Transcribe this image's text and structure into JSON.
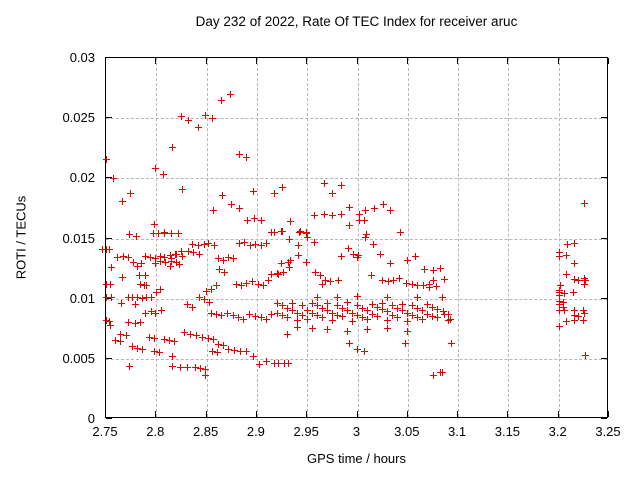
{
  "chart_data": {
    "type": "scatter",
    "title": "Day 232 of 2022, Rate Of TEC Index for receiver aruc",
    "xlabel": "GPS time / hours",
    "ylabel": "ROTI / TECUs",
    "xlim": [
      2.75,
      3.25
    ],
    "ylim": [
      0,
      0.03
    ],
    "x_ticks": [
      2.75,
      2.8,
      2.85,
      2.9,
      2.95,
      3.0,
      3.05,
      3.1,
      3.15,
      3.2,
      3.25
    ],
    "x_tick_labels": [
      "2.75",
      "2.8",
      "2.85",
      "2.9",
      "2.95",
      "3",
      "3.05",
      "3.1",
      "3.15",
      "3.2",
      "3.25"
    ],
    "y_ticks": [
      0,
      0.005,
      0.01,
      0.015,
      0.02,
      0.025,
      0.03
    ],
    "y_tick_labels": [
      "0",
      "0.005",
      "0.01",
      "0.015",
      "0.02",
      "0.025",
      "0.03"
    ],
    "grid": true,
    "legend": "none",
    "marker": "plus",
    "marker_color": "#e60000",
    "grid_color": "#b5b5b5",
    "points": [
      [
        2.874,
        0.027
      ],
      [
        2.865,
        0.0265
      ],
      [
        2.825,
        0.0251
      ],
      [
        2.832,
        0.0248
      ],
      [
        2.842,
        0.0242
      ],
      [
        2.849,
        0.0252
      ],
      [
        2.856,
        0.025
      ],
      [
        2.816,
        0.0226
      ],
      [
        2.883,
        0.022
      ],
      [
        2.89,
        0.0217
      ],
      [
        2.75,
        0.0216
      ],
      [
        2.757,
        0.02
      ],
      [
        2.799,
        0.0208
      ],
      [
        2.807,
        0.0203
      ],
      [
        2.774,
        0.0187
      ],
      [
        2.766,
        0.0181
      ],
      [
        2.826,
        0.0191
      ],
      [
        2.866,
        0.0186
      ],
      [
        2.875,
        0.0178
      ],
      [
        2.857,
        0.0173
      ],
      [
        2.883,
        0.0175
      ],
      [
        2.897,
        0.0189
      ],
      [
        2.898,
        0.0167
      ],
      [
        2.891,
        0.0165
      ],
      [
        2.905,
        0.0165
      ],
      [
        2.798,
        0.0162
      ],
      [
        2.808,
        0.0155
      ],
      [
        2.967,
        0.0196
      ],
      [
        2.925,
        0.0192
      ],
      [
        2.917,
        0.0187
      ],
      [
        2.984,
        0.0194
      ],
      [
        2.975,
        0.0187
      ],
      [
        2.992,
        0.0176
      ],
      [
        3.026,
        0.0178
      ],
      [
        3.017,
        0.0175
      ],
      [
        3.033,
        0.0173
      ],
      [
        3.008,
        0.0173
      ],
      [
        2.957,
        0.0169
      ],
      [
        2.967,
        0.017
      ],
      [
        2.975,
        0.0169
      ],
      [
        2.984,
        0.017
      ],
      [
        3.002,
        0.017
      ],
      [
        3.002,
        0.0165
      ],
      [
        3.007,
        0.0165
      ],
      [
        2.992,
        0.0161
      ],
      [
        2.933,
        0.0164
      ],
      [
        2.915,
        0.0155
      ],
      [
        2.924,
        0.0156
      ],
      [
        2.942,
        0.0155
      ],
      [
        2.949,
        0.0154
      ],
      [
        3.043,
        0.0155
      ],
      [
        3.008,
        0.0151
      ],
      [
        2.95,
        0.0151
      ],
      [
        2.917,
        0.0155
      ],
      [
        2.925,
        0.0156
      ],
      [
        2.943,
        0.0156
      ],
      [
        2.949,
        0.0155
      ],
      [
        2.932,
        0.0149
      ],
      [
        2.941,
        0.0144
      ],
      [
        2.941,
        0.0136
      ],
      [
        2.957,
        0.0147
      ],
      [
        2.949,
        0.013
      ],
      [
        2.924,
        0.0129
      ],
      [
        2.931,
        0.013
      ],
      [
        2.933,
        0.0132
      ],
      [
        2.932,
        0.0126
      ],
      [
        2.926,
        0.0122
      ],
      [
        2.92,
        0.0121
      ],
      [
        2.915,
        0.012
      ],
      [
        2.921,
        0.012
      ],
      [
        2.958,
        0.0122
      ],
      [
        2.963,
        0.0119
      ],
      [
        2.968,
        0.0115
      ],
      [
        2.965,
        0.0112
      ],
      [
        2.973,
        0.0114
      ],
      [
        2.981,
        0.0115
      ],
      [
        2.984,
        0.0135
      ],
      [
        2.991,
        0.0142
      ],
      [
        2.996,
        0.0137
      ],
      [
        3.001,
        0.0136
      ],
      [
        3.0,
        0.0134
      ],
      [
        3.009,
        0.0153
      ],
      [
        3.016,
        0.0145
      ],
      [
        3.023,
        0.0137
      ],
      [
        3.033,
        0.0129
      ],
      [
        3.05,
        0.0132
      ],
      [
        3.058,
        0.0135
      ],
      [
        3.014,
        0.0119
      ],
      [
        3.025,
        0.0115
      ],
      [
        3.031,
        0.0114
      ],
      [
        3.036,
        0.0115
      ],
      [
        3.042,
        0.0117
      ],
      [
        3.049,
        0.0113
      ],
      [
        3.055,
        0.0112
      ],
      [
        3.06,
        0.0111
      ],
      [
        3.066,
        0.0111
      ],
      [
        3.072,
        0.0112
      ],
      [
        3.076,
        0.0115
      ],
      [
        3.067,
        0.0124
      ],
      [
        3.083,
        0.0125
      ],
      [
        3.086,
        0.0116
      ],
      [
        3.072,
        0.0109
      ],
      [
        3.079,
        0.011
      ],
      [
        3.076,
        0.0123
      ],
      [
        2.75,
        0.0141
      ],
      [
        2.747,
        0.0141
      ],
      [
        2.753,
        0.0141
      ],
      [
        2.761,
        0.0134
      ],
      [
        2.767,
        0.0135
      ],
      [
        2.772,
        0.0134
      ],
      [
        2.755,
        0.0126
      ],
      [
        2.777,
        0.013
      ],
      [
        2.781,
        0.0127
      ],
      [
        2.766,
        0.0118
      ],
      [
        2.754,
        0.0112
      ],
      [
        2.75,
        0.0112
      ],
      [
        2.784,
        0.0112
      ],
      [
        2.79,
        0.0111
      ],
      [
        2.755,
        0.0101
      ],
      [
        2.75,
        0.0101
      ],
      [
        2.765,
        0.0096
      ],
      [
        2.772,
        0.0101
      ],
      [
        2.776,
        0.0101
      ],
      [
        2.781,
        0.0101
      ],
      [
        2.786,
        0.01
      ],
      [
        2.79,
        0.0101
      ],
      [
        2.779,
        0.0095
      ],
      [
        2.75,
        0.0082
      ],
      [
        2.753,
        0.0081
      ],
      [
        2.754,
        0.0078
      ],
      [
        2.772,
        0.008
      ],
      [
        2.779,
        0.0079
      ],
      [
        2.784,
        0.008
      ],
      [
        2.789,
        0.0088
      ],
      [
        2.795,
        0.0089
      ],
      [
        2.799,
        0.0088
      ],
      [
        2.805,
        0.009
      ],
      [
        2.789,
        0.0135
      ],
      [
        2.794,
        0.0134
      ],
      [
        2.799,
        0.0133
      ],
      [
        2.804,
        0.0135
      ],
      [
        2.808,
        0.0134
      ],
      [
        2.814,
        0.0136
      ],
      [
        2.819,
        0.0137
      ],
      [
        2.815,
        0.0133
      ],
      [
        2.785,
        0.0129
      ],
      [
        2.783,
        0.0119
      ],
      [
        2.789,
        0.0119
      ],
      [
        2.788,
        0.0111
      ],
      [
        2.795,
        0.0101
      ],
      [
        2.8,
        0.0105
      ],
      [
        2.804,
        0.0108
      ],
      [
        2.799,
        0.0129
      ],
      [
        2.804,
        0.0131
      ],
      [
        2.809,
        0.013
      ],
      [
        2.815,
        0.0131
      ],
      [
        2.82,
        0.0137
      ],
      [
        2.825,
        0.0139
      ],
      [
        2.826,
        0.0135
      ],
      [
        2.82,
        0.013
      ],
      [
        2.823,
        0.0128
      ],
      [
        2.814,
        0.0127
      ],
      [
        2.773,
        0.0153
      ],
      [
        2.78,
        0.0152
      ],
      [
        2.797,
        0.0154
      ],
      [
        2.802,
        0.0154
      ],
      [
        2.808,
        0.0154
      ],
      [
        2.815,
        0.0154
      ],
      [
        2.822,
        0.0154
      ],
      [
        2.836,
        0.0145
      ],
      [
        2.842,
        0.0144
      ],
      [
        2.848,
        0.0145
      ],
      [
        2.852,
        0.0146
      ],
      [
        2.858,
        0.0144
      ],
      [
        2.832,
        0.0139
      ],
      [
        2.837,
        0.0138
      ],
      [
        2.843,
        0.0137
      ],
      [
        2.862,
        0.0133
      ],
      [
        2.867,
        0.0132
      ],
      [
        2.872,
        0.0134
      ],
      [
        2.877,
        0.0133
      ],
      [
        2.883,
        0.0146
      ],
      [
        2.888,
        0.0147
      ],
      [
        2.894,
        0.0144
      ],
      [
        2.899,
        0.0145
      ],
      [
        2.905,
        0.0144
      ],
      [
        2.91,
        0.0146
      ],
      [
        2.863,
        0.0124
      ],
      [
        2.868,
        0.0122
      ],
      [
        2.88,
        0.0112
      ],
      [
        2.885,
        0.0111
      ],
      [
        2.89,
        0.0113
      ],
      [
        2.896,
        0.0114
      ],
      [
        2.902,
        0.0112
      ],
      [
        2.907,
        0.0111
      ],
      [
        2.912,
        0.0115
      ],
      [
        2.86,
        0.0111
      ],
      [
        2.855,
        0.0108
      ],
      [
        2.85,
        0.0106
      ],
      [
        2.843,
        0.0101
      ],
      [
        2.848,
        0.0099
      ],
      [
        2.853,
        0.0097
      ],
      [
        2.831,
        0.0095
      ],
      [
        2.836,
        0.0093
      ],
      [
        2.855,
        0.0088
      ],
      [
        2.86,
        0.0087
      ],
      [
        2.865,
        0.0086
      ],
      [
        2.871,
        0.0088
      ],
      [
        2.877,
        0.0086
      ],
      [
        2.882,
        0.0084
      ],
      [
        2.887,
        0.0083
      ],
      [
        2.893,
        0.0087
      ],
      [
        2.899,
        0.0085
      ],
      [
        2.905,
        0.0084
      ],
      [
        2.91,
        0.0083
      ],
      [
        2.915,
        0.0087
      ],
      [
        2.828,
        0.0072
      ],
      [
        2.834,
        0.007
      ],
      [
        2.84,
        0.0069
      ],
      [
        2.846,
        0.0068
      ],
      [
        2.852,
        0.0067
      ],
      [
        2.857,
        0.0066
      ],
      [
        2.808,
        0.0066
      ],
      [
        2.813,
        0.0065
      ],
      [
        2.818,
        0.0064
      ],
      [
        2.793,
        0.0068
      ],
      [
        2.798,
        0.0067
      ],
      [
        2.764,
        0.007
      ],
      [
        2.77,
        0.0069
      ],
      [
        2.759,
        0.0065
      ],
      [
        2.764,
        0.0064
      ],
      [
        2.776,
        0.006
      ],
      [
        2.781,
        0.0059
      ],
      [
        2.786,
        0.0058
      ],
      [
        2.798,
        0.0056
      ],
      [
        2.803,
        0.0055
      ],
      [
        2.856,
        0.0056
      ],
      [
        2.861,
        0.0055
      ],
      [
        2.872,
        0.0058
      ],
      [
        2.878,
        0.0057
      ],
      [
        2.884,
        0.0056
      ],
      [
        2.89,
        0.0056
      ],
      [
        2.862,
        0.0062
      ],
      [
        2.867,
        0.0061
      ],
      [
        2.92,
        0.0096
      ],
      [
        2.92,
        0.0088
      ],
      [
        2.925,
        0.0094
      ],
      [
        2.925,
        0.0086
      ],
      [
        2.93,
        0.0092
      ],
      [
        2.93,
        0.0084
      ],
      [
        2.935,
        0.0096
      ],
      [
        2.935,
        0.009
      ],
      [
        2.94,
        0.0088
      ],
      [
        2.94,
        0.0082
      ],
      [
        2.945,
        0.0094
      ],
      [
        2.945,
        0.0086
      ],
      [
        2.95,
        0.009
      ],
      [
        2.95,
        0.0083
      ],
      [
        2.955,
        0.0096
      ],
      [
        2.955,
        0.0088
      ],
      [
        2.96,
        0.0094
      ],
      [
        2.96,
        0.0086
      ],
      [
        2.965,
        0.0092
      ],
      [
        2.965,
        0.0084
      ],
      [
        2.97,
        0.009
      ],
      [
        2.97,
        0.0096
      ],
      [
        2.975,
        0.0088
      ],
      [
        2.975,
        0.0082
      ],
      [
        2.98,
        0.0094
      ],
      [
        2.98,
        0.0086
      ],
      [
        2.985,
        0.0092
      ],
      [
        2.985,
        0.0085
      ],
      [
        2.99,
        0.009
      ],
      [
        2.99,
        0.0097
      ],
      [
        2.995,
        0.0088
      ],
      [
        2.995,
        0.0081
      ],
      [
        3.0,
        0.0094
      ],
      [
        3.0,
        0.0086
      ],
      [
        3.005,
        0.0092
      ],
      [
        3.005,
        0.0084
      ],
      [
        3.01,
        0.009
      ],
      [
        3.01,
        0.0083
      ],
      [
        3.015,
        0.0095
      ],
      [
        3.015,
        0.0087
      ],
      [
        3.02,
        0.0093
      ],
      [
        3.02,
        0.0085
      ],
      [
        3.025,
        0.0091
      ],
      [
        3.025,
        0.0096
      ],
      [
        3.03,
        0.0089
      ],
      [
        3.03,
        0.0082
      ],
      [
        3.035,
        0.0094
      ],
      [
        3.035,
        0.0086
      ],
      [
        3.04,
        0.0092
      ],
      [
        3.04,
        0.0084
      ],
      [
        3.045,
        0.009
      ],
      [
        3.045,
        0.0095
      ],
      [
        3.05,
        0.0088
      ],
      [
        3.05,
        0.0081
      ],
      [
        3.055,
        0.0094
      ],
      [
        3.055,
        0.0086
      ],
      [
        3.06,
        0.0092
      ],
      [
        3.06,
        0.0084
      ],
      [
        3.065,
        0.009
      ],
      [
        3.065,
        0.0083
      ],
      [
        3.07,
        0.0095
      ],
      [
        3.07,
        0.0087
      ],
      [
        3.075,
        0.0093
      ],
      [
        3.075,
        0.0085
      ],
      [
        3.08,
        0.0091
      ],
      [
        3.08,
        0.0084
      ],
      [
        3.085,
        0.0089
      ],
      [
        3.09,
        0.0087
      ],
      [
        3.09,
        0.0082
      ],
      [
        2.96,
        0.0101
      ],
      [
        2.98,
        0.0101
      ],
      [
        3.0,
        0.0102
      ],
      [
        3.03,
        0.0101
      ],
      [
        3.06,
        0.0101
      ],
      [
        2.94,
        0.0076
      ],
      [
        2.955,
        0.0075
      ],
      [
        2.97,
        0.0074
      ],
      [
        2.99,
        0.0073
      ],
      [
        3.01,
        0.0074
      ],
      [
        3.03,
        0.0075
      ],
      [
        3.05,
        0.0073
      ],
      [
        2.93,
        0.007
      ],
      [
        3.048,
        0.0063
      ],
      [
        2.992,
        0.0063
      ],
      [
        3.0,
        0.0058
      ],
      [
        3.007,
        0.0056
      ],
      [
        3.084,
        0.0101
      ],
      [
        3.086,
        0.0087
      ],
      [
        3.092,
        0.0083
      ],
      [
        3.093,
        0.0063
      ],
      [
        3.084,
        0.0039
      ],
      [
        3.076,
        0.0036
      ],
      [
        3.083,
        0.0039
      ],
      [
        2.773,
        0.0044
      ],
      [
        2.816,
        0.0052
      ],
      [
        2.816,
        0.0044
      ],
      [
        2.824,
        0.0043
      ],
      [
        2.831,
        0.0043
      ],
      [
        2.839,
        0.0043
      ],
      [
        2.844,
        0.0042
      ],
      [
        2.849,
        0.0041
      ],
      [
        2.849,
        0.0036
      ],
      [
        2.897,
        0.0052
      ],
      [
        2.903,
        0.0045
      ],
      [
        2.91,
        0.0048
      ],
      [
        2.917,
        0.0046
      ],
      [
        2.921,
        0.0046
      ],
      [
        2.927,
        0.0046
      ],
      [
        2.931,
        0.0046
      ],
      [
        3.226,
        0.0179
      ],
      [
        3.209,
        0.0145
      ],
      [
        3.216,
        0.0146
      ],
      [
        3.201,
        0.0138
      ],
      [
        3.201,
        0.0135
      ],
      [
        3.208,
        0.0136
      ],
      [
        3.216,
        0.0129
      ],
      [
        3.208,
        0.012
      ],
      [
        3.216,
        0.0116
      ],
      [
        3.22,
        0.0115
      ],
      [
        3.226,
        0.0117
      ],
      [
        3.227,
        0.0115
      ],
      [
        3.226,
        0.0112
      ],
      [
        3.202,
        0.0111
      ],
      [
        3.201,
        0.0107
      ],
      [
        3.201,
        0.0105
      ],
      [
        3.201,
        0.0103
      ],
      [
        3.206,
        0.0104
      ],
      [
        3.215,
        0.0105
      ],
      [
        3.201,
        0.0098
      ],
      [
        3.205,
        0.0097
      ],
      [
        3.201,
        0.0095
      ],
      [
        3.205,
        0.0093
      ],
      [
        3.201,
        0.009
      ],
      [
        3.206,
        0.009
      ],
      [
        3.216,
        0.009
      ],
      [
        3.225,
        0.009
      ],
      [
        3.226,
        0.0088
      ],
      [
        3.216,
        0.0086
      ],
      [
        3.22,
        0.0085
      ],
      [
        3.216,
        0.0082
      ],
      [
        3.225,
        0.0082
      ],
      [
        3.208,
        0.0081
      ],
      [
        3.201,
        0.0077
      ],
      [
        3.227,
        0.0053
      ]
    ]
  }
}
